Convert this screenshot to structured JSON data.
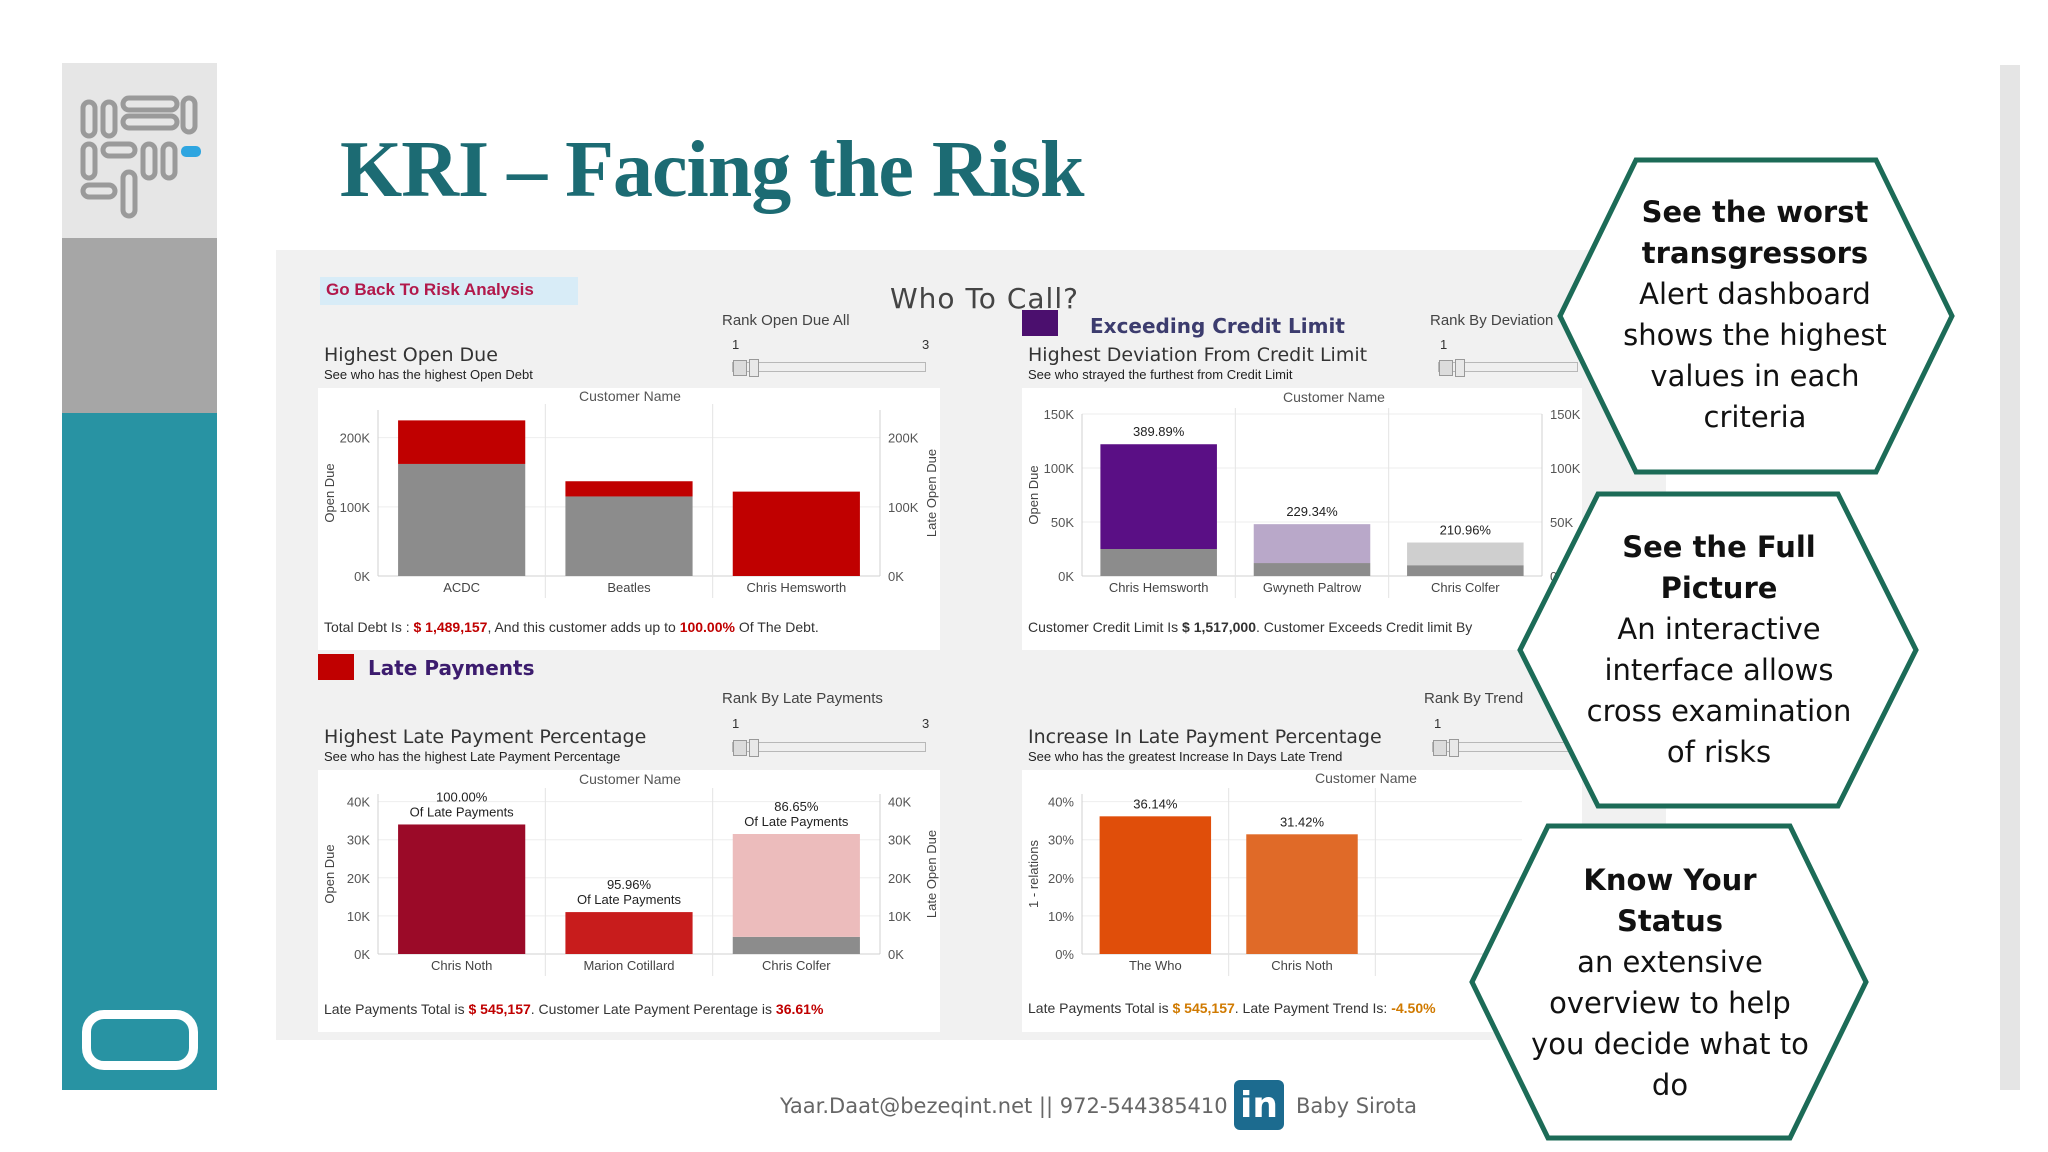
{
  "slide": {
    "title": "KRI – Facing the Risk"
  },
  "dashboard": {
    "go_back_label": "Go Back To Risk Analysis",
    "title": "Who To Call?",
    "legend_exceeding": {
      "label": "Exceeding Credit Limit",
      "color": "#4b0f6e"
    },
    "legend_late": {
      "label": "Late Payments",
      "color": "#c00000"
    },
    "panels": {
      "open_due": {
        "title": "Highest Open Due",
        "subtitle": "See who has the highest Open Debt",
        "rank_label": "Rank Open Due All",
        "slider_min": "1",
        "slider_max": "3",
        "customer_header": "Customer Name",
        "footer": {
          "prefix": "Total Debt Is : ",
          "v1": "$ 1,489,157",
          "mid": ", And this customer adds up to ",
          "v2": "100.00%",
          "suffix": " Of The Debt."
        }
      },
      "deviation": {
        "title": "Highest Deviation From Credit Limit",
        "subtitle": "See who strayed the furthest from Credit Limit",
        "rank_label": "Rank By Deviation",
        "slider_min": "1",
        "customer_header": "Customer Name",
        "footer": {
          "prefix": "Customer Credit Limit Is  ",
          "v1": "$ 1,517,000",
          "suffix": ". Customer Exceeds Credit limit By"
        }
      },
      "late_pct": {
        "title": "Highest Late Payment Percentage",
        "subtitle": "See who has the highest Late Payment Percentage",
        "rank_label": "Rank By Late Payments",
        "slider_min": "1",
        "slider_max": "3",
        "customer_header": "Customer Name",
        "footer": {
          "prefix": "Late Payments Total is  ",
          "v1": "$ 545,157",
          "mid": ". Customer Late Payment Perentage is ",
          "v2": "36.61%"
        }
      },
      "increase": {
        "title": "Increase In Late Payment Percentage",
        "subtitle": "See who has the greatest Increase In Days Late Trend",
        "rank_label": "Rank By Trend",
        "slider_min": "1",
        "customer_header": "Customer Name",
        "footer": {
          "prefix": "Late Payments Total is ",
          "v1": "$ 545,157",
          "mid": ".  Late Payment Trend Is: ",
          "v2": "-4.50%"
        }
      }
    }
  },
  "chart_data": [
    {
      "type": "bar",
      "title": "Highest Open Due",
      "xlabel": "Customer Name",
      "ylabel": "Open Due",
      "ylabel_right": "Late Open Due",
      "categories": [
        "ACDC",
        "Beatles",
        "Chris Hemsworth"
      ],
      "series": [
        {
          "name": "Open Due",
          "color": "#8c8c8c",
          "values": [
            162000,
            115000,
            0
          ]
        },
        {
          "name": "Late Open Due",
          "color": "#c00000",
          "values": [
            63000,
            22000,
            122000
          ]
        }
      ],
      "ylim": [
        0,
        240000
      ],
      "yticks": [
        "0K",
        "100K",
        "200K"
      ],
      "ytick_values": [
        0,
        100000,
        200000
      ]
    },
    {
      "type": "bar",
      "title": "Highest Deviation From Credit Limit",
      "xlabel": "Customer Name",
      "ylabel": "Open Due",
      "ylabel_right": "Credit Limit",
      "categories": [
        "Chris Hemsworth",
        "Gwyneth Paltrow",
        "Chris Colfer"
      ],
      "series": [
        {
          "name": "Credit Limit",
          "color": "#8c8c8c",
          "values": [
            25000,
            12000,
            10000
          ]
        },
        {
          "name": "Deviation",
          "colors": [
            "#5a0f85",
            "#b9a8c9",
            "#cfcfcf"
          ],
          "values": [
            97000,
            36000,
            21000
          ]
        }
      ],
      "data_labels": [
        "389.89%",
        "229.34%",
        "210.96%"
      ],
      "ylim": [
        0,
        150000
      ],
      "yticks": [
        "0K",
        "50K",
        "100K",
        "150K"
      ],
      "ytick_values": [
        0,
        50000,
        100000,
        150000
      ]
    },
    {
      "type": "bar",
      "title": "Highest Late Payment Percentage",
      "xlabel": "Customer Name",
      "ylabel": "Open Due",
      "ylabel_right": "Late Open Due",
      "categories": [
        "Chris Noth",
        "Marion Cotillard",
        "Chris Colfer"
      ],
      "series": [
        {
          "name": "Open Due",
          "color": "#8c8c8c",
          "values": [
            0,
            0,
            4500
          ]
        },
        {
          "name": "Late Open Due",
          "colors": [
            "#9b0a28",
            "#c81c1c",
            "#ecbcbc"
          ],
          "values": [
            34000,
            11000,
            27000
          ]
        }
      ],
      "data_labels": [
        "100.00%\nOf Late Payments",
        "95.96%\nOf Late Payments",
        "86.65%\nOf Late Payments"
      ],
      "ylim": [
        0,
        42000
      ],
      "yticks": [
        "0K",
        "10K",
        "20K",
        "30K",
        "40K"
      ],
      "ytick_values": [
        0,
        10000,
        20000,
        30000,
        40000
      ]
    },
    {
      "type": "bar",
      "title": "Increase In Late Payment Percentage",
      "xlabel": "Customer Name",
      "ylabel": "1 - relations",
      "categories": [
        "The Who",
        "Chris Noth"
      ],
      "series": [
        {
          "name": "Increase",
          "colors": [
            "#e04e0a",
            "#e06a28"
          ],
          "values": [
            0.3614,
            0.3142
          ]
        }
      ],
      "data_labels": [
        "36.14%",
        "31.42%"
      ],
      "ylim": [
        0,
        0.42
      ],
      "yticks": [
        "0%",
        "10%",
        "20%",
        "30%",
        "40%"
      ],
      "ytick_values": [
        0,
        0.1,
        0.2,
        0.3,
        0.4
      ]
    }
  ],
  "callouts": [
    {
      "title": "See the worst transgressors",
      "body": "Alert dashboard shows the highest values in each criteria"
    },
    {
      "title": "See the Full Picture",
      "body": "An interactive interface allows cross examination of risks"
    },
    {
      "title": "Know Your Status",
      "body": "an extensive overview to help you decide what to do"
    }
  ],
  "footer": {
    "contact": "Yaar.Daat@bezeqint.net || 972-544385410 ||",
    "linkedin_icon": "in",
    "linkedin_name": "Baby Sirota"
  },
  "colors": {
    "accent": "#1c6b73",
    "hex_border": "#1c6b57",
    "teal_strip": "#2893a3"
  }
}
